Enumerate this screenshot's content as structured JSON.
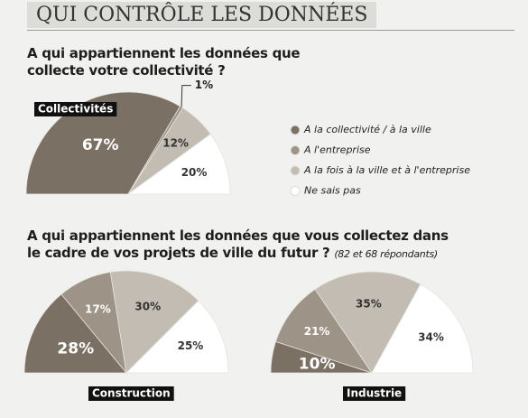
{
  "header": {
    "title": "QUI CONTRÔLE LES DONNÉES"
  },
  "chart_data": [
    {
      "type": "pie",
      "title": "A qui appartiennent les données que collecte votre collectivité ?",
      "label": "Collectivités",
      "categories": [
        "A la collectivité / à la ville",
        "A l'entreprise",
        "A la fois à la ville et à l'entreprise",
        "Ne sais pas"
      ],
      "values": [
        67,
        1,
        12,
        20
      ],
      "value_labels": [
        "67%",
        "1%",
        "12%",
        "20%"
      ],
      "colors": [
        "#7b7064",
        "#9d9386",
        "#c3bcb3",
        "#ffffff"
      ]
    },
    {
      "type": "pie",
      "title": "A qui appartiennent les données que vous collectez dans le cadre de vos projets de ville du futur ?",
      "subtitle": "(82 et 68 répondants)",
      "label": "Construction",
      "values": [
        28,
        17,
        30,
        25
      ],
      "value_labels": [
        "28%",
        "17%",
        "30%",
        "25%"
      ],
      "colors": [
        "#7b7064",
        "#9d9386",
        "#c3bcb3",
        "#ffffff"
      ]
    },
    {
      "type": "pie",
      "label": "Industrie",
      "values": [
        10,
        21,
        35,
        34
      ],
      "value_labels": [
        "10%",
        "21%",
        "35%",
        "34%"
      ],
      "colors": [
        "#7b7064",
        "#9d9386",
        "#c3bcb3",
        "#ffffff"
      ]
    }
  ]
}
